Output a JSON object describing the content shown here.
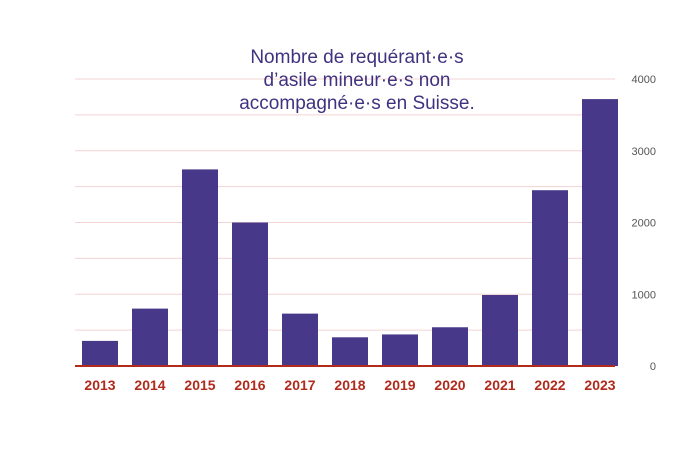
{
  "chart_data": {
    "type": "bar",
    "title_lines": [
      "Nombre de requérant·e·s",
      "d’asile mineur·e·s non",
      "accompagné·e·s en Suisse."
    ],
    "categories": [
      "2013",
      "2014",
      "2015",
      "2016",
      "2017",
      "2018",
      "2019",
      "2020",
      "2021",
      "2022",
      "2023"
    ],
    "values": [
      350,
      800,
      2740,
      2000,
      730,
      400,
      440,
      540,
      990,
      2450,
      3720
    ],
    "ylim": [
      0,
      4000
    ],
    "yticks": [
      "0",
      "1000",
      "2000",
      "3000",
      "4000"
    ],
    "ytick_values": [
      0,
      1000,
      2000,
      3000,
      4000
    ],
    "minor_gridlines": [
      500,
      1500,
      2500,
      3500
    ],
    "xlabel": "",
    "ylabel": "",
    "axis_position": "right",
    "grid": true,
    "colors": {
      "bar": "#473889",
      "title": "#3f3380",
      "xtick": "#b22a1c",
      "baseline": "#b22a1c",
      "grid": "#f3d3d3",
      "ytick": "#555555"
    }
  }
}
